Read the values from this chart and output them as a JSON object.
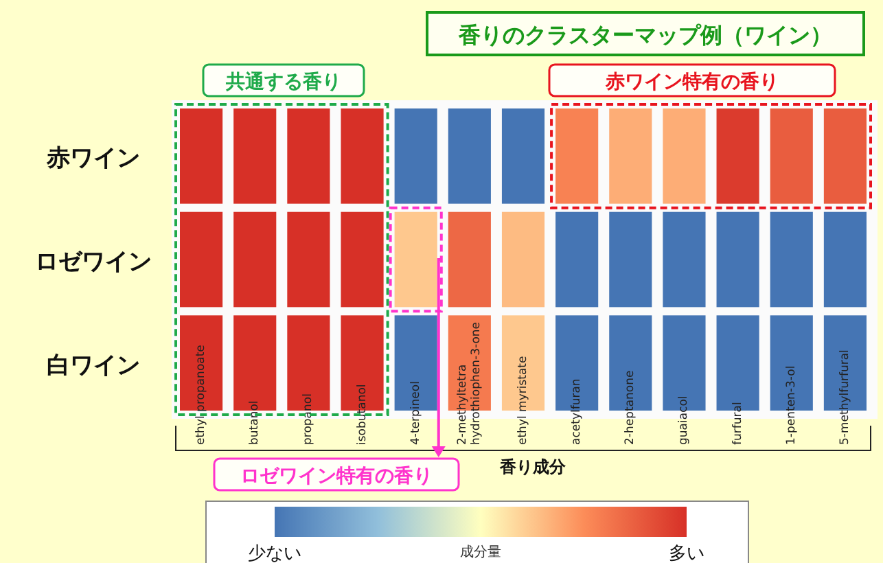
{
  "chart_data": {
    "type": "heatmap",
    "title": "香りのクラスターマップ例（ワイン）",
    "xlabel": "香り成分",
    "clabel": "成分量",
    "categories": [
      "ethyl propanoate",
      "butanol",
      "propanol",
      "isobutanol",
      "4-terpineol",
      "2-methyltetra\nhydrothiophen-3-one",
      "ethyl myristate",
      "acetylfuran",
      "2-heptanone",
      "guaiacol",
      "furfural",
      "1-penten-3-ol",
      "5-methylfurfural"
    ],
    "y_categories": [
      "赤ワイン",
      "ロゼワイン",
      "白ワイン"
    ],
    "cells": [
      [
        1,
        1,
        1,
        1,
        0,
        0,
        0,
        0.78,
        0.68,
        0.68,
        0.97,
        0.88,
        0.88
      ],
      [
        1,
        1,
        1,
        1,
        0.62,
        0.85,
        0.65,
        0,
        0,
        0,
        0,
        0,
        0
      ],
      [
        1,
        1,
        1,
        1,
        0,
        0.8,
        0.62,
        0,
        0,
        0,
        0,
        0,
        0
      ]
    ],
    "clim": [
      0,
      1
    ],
    "cticks": [
      {
        "value": 0,
        "label": "少ない"
      },
      {
        "value": 1,
        "label": "多い"
      }
    ],
    "annotations": [
      "共通する香り",
      "赤ワイン特有の香り",
      "ロゼワイン特有の香り"
    ]
  }
}
